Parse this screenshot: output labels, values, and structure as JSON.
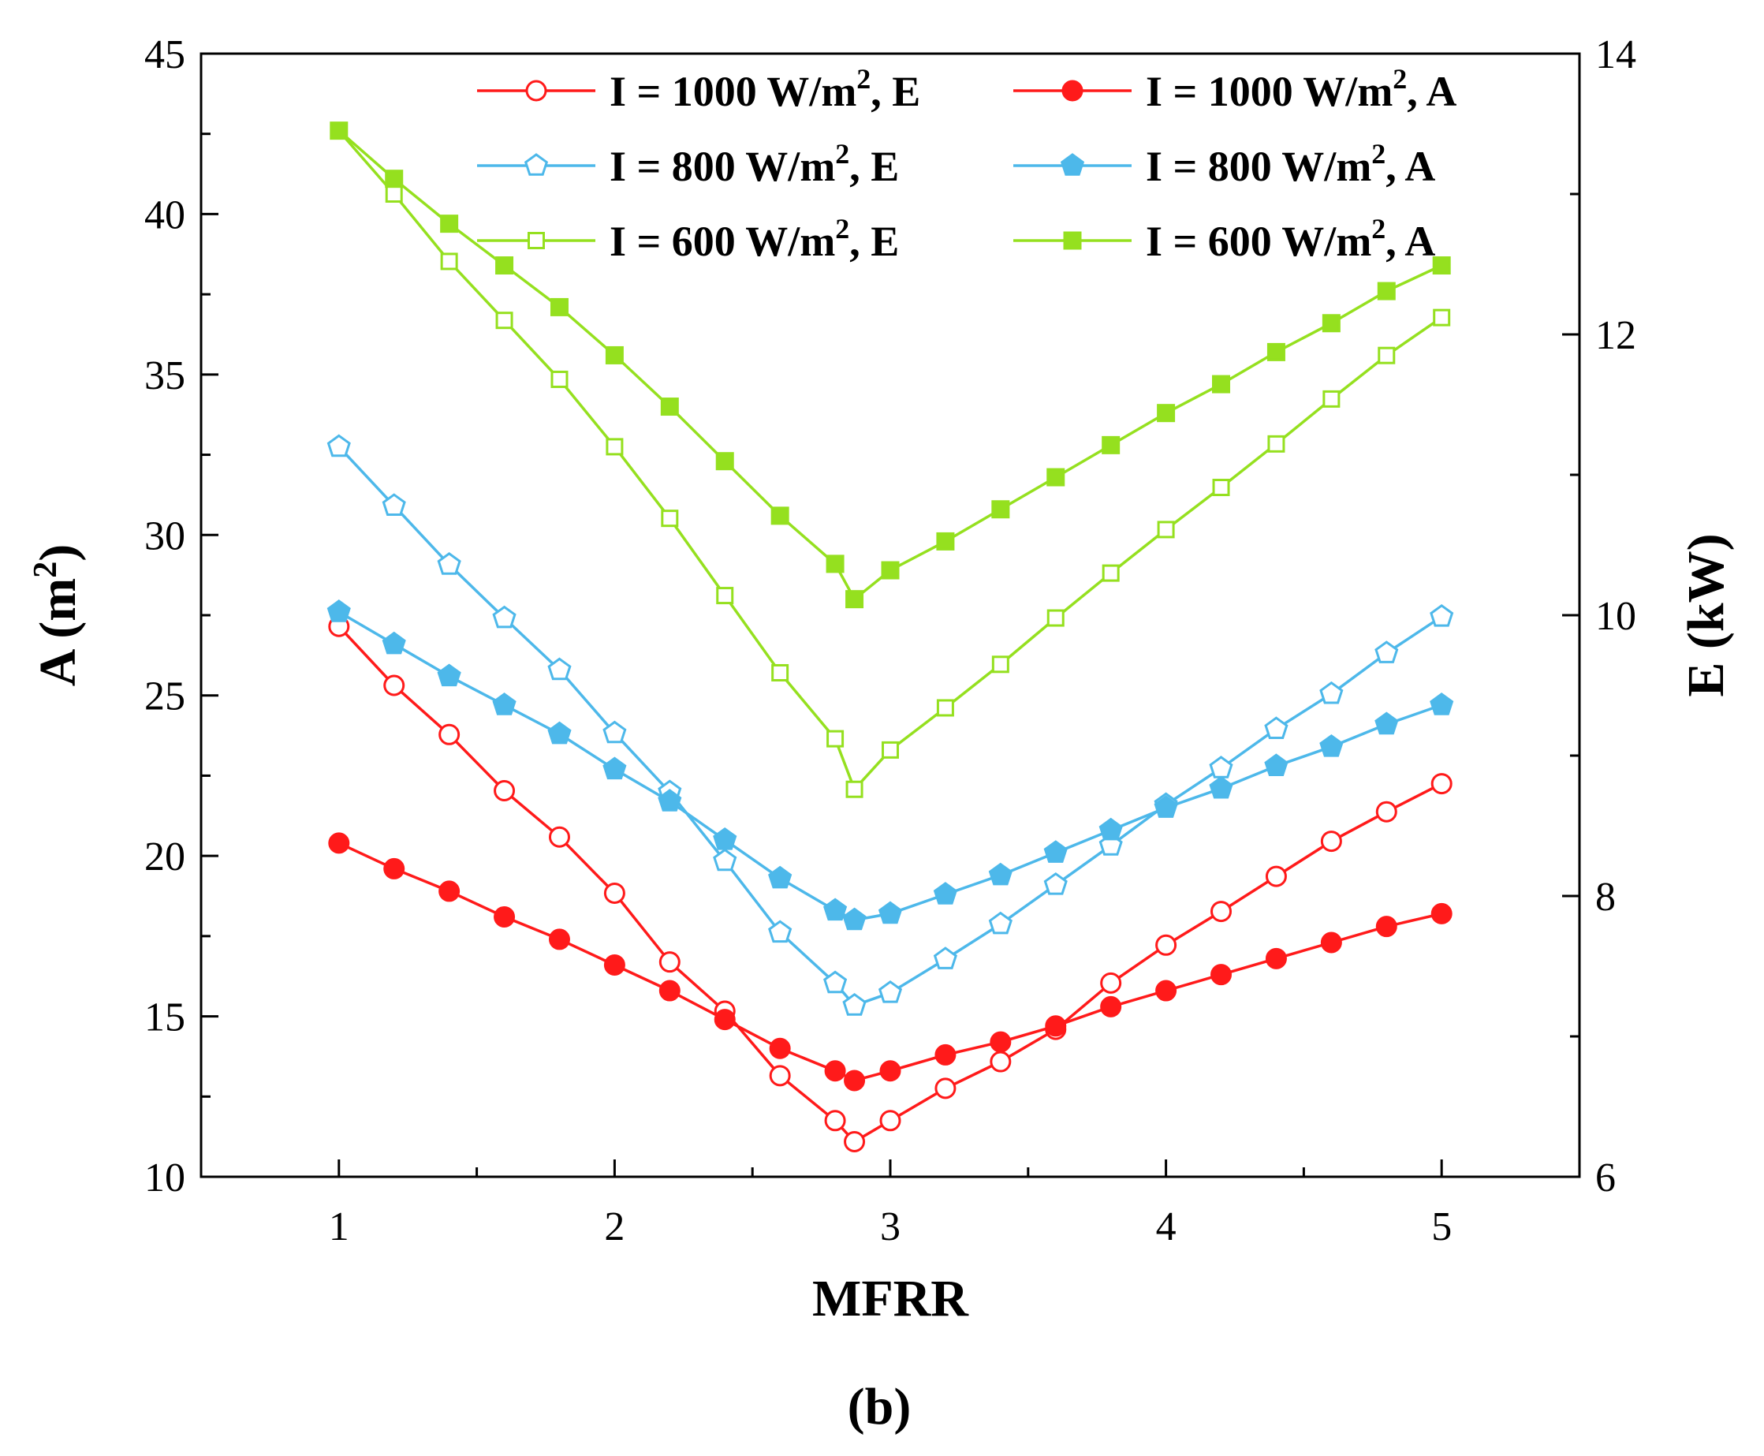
{
  "chart_data": {
    "type": "line",
    "panel_label": "(b)",
    "xlabel": "MFRR",
    "ylabel_left": "A (m²)",
    "ylabel_right": "E (kW)",
    "xlim": [
      0.5,
      5.5
    ],
    "ylim_left": [
      10,
      45
    ],
    "ylim_right": [
      6,
      14
    ],
    "x_ticks": [
      1,
      2,
      3,
      4,
      5
    ],
    "y_left_ticks": [
      10,
      15,
      20,
      25,
      30,
      35,
      40,
      45
    ],
    "y_right_ticks": [
      6,
      8,
      10,
      12,
      14
    ],
    "x": [
      1,
      1.2,
      1.4,
      1.6,
      1.8,
      2,
      2.2,
      2.4,
      2.6,
      2.8,
      2.87,
      3,
      3.2,
      3.4,
      3.6,
      3.8,
      4,
      4.2,
      4.4,
      4.6,
      4.8,
      5
    ],
    "legend_position": "top-right",
    "series": [
      {
        "name": "I = 1000 W/m², E",
        "legend_prefix": "I = 1000 W/m",
        "legend_sup": "2",
        "legend_suffix": ", E",
        "axis": "right",
        "color": "#ff1a1a",
        "marker": "circle",
        "filled": false,
        "values": [
          9.92,
          9.5,
          9.15,
          8.75,
          8.42,
          8.02,
          7.53,
          7.18,
          6.72,
          6.4,
          6.25,
          6.4,
          6.63,
          6.82,
          7.05,
          7.38,
          7.65,
          7.89,
          8.14,
          8.39,
          8.6,
          8.8
        ]
      },
      {
        "name": "I = 1000 W/m², A",
        "legend_prefix": "I = 1000 W/m",
        "legend_sup": "2",
        "legend_suffix": ", A",
        "axis": "left",
        "color": "#ff1a1a",
        "marker": "circle",
        "filled": true,
        "values": [
          20.4,
          19.6,
          18.9,
          18.1,
          17.4,
          16.6,
          15.8,
          14.9,
          14.0,
          13.3,
          13.0,
          13.3,
          13.8,
          14.2,
          14.7,
          15.3,
          15.8,
          16.3,
          16.8,
          17.3,
          17.8,
          18.2
        ]
      },
      {
        "name": "I = 800 W/m², E",
        "legend_prefix": "I = 800 W/m",
        "legend_sup": "2",
        "legend_suffix": ", E",
        "axis": "right",
        "color": "#4db8ea",
        "marker": "pentagon",
        "filled": false,
        "values": [
          11.2,
          10.78,
          10.36,
          9.98,
          9.61,
          9.16,
          8.74,
          8.25,
          7.74,
          7.38,
          7.22,
          7.31,
          7.55,
          7.8,
          8.08,
          8.36,
          8.65,
          8.91,
          9.19,
          9.44,
          9.73,
          9.99
        ]
      },
      {
        "name": "I = 800 W/m², A",
        "legend_prefix": "I = 800 W/m",
        "legend_sup": "2",
        "legend_suffix": ", A",
        "axis": "left",
        "color": "#4db8ea",
        "marker": "pentagon",
        "filled": true,
        "values": [
          27.6,
          26.6,
          25.6,
          24.7,
          23.8,
          22.7,
          21.7,
          20.5,
          19.3,
          18.3,
          18.0,
          18.2,
          18.8,
          19.4,
          20.1,
          20.8,
          21.5,
          22.1,
          22.8,
          23.4,
          24.1,
          24.7
        ]
      },
      {
        "name": "I = 600 W/m², E",
        "legend_prefix": "I = 600 W/m",
        "legend_sup": "2",
        "legend_suffix": ", E",
        "axis": "right",
        "color": "#95e01f",
        "marker": "square",
        "filled": false,
        "values": [
          13.45,
          13.0,
          12.52,
          12.1,
          11.68,
          11.2,
          10.69,
          10.14,
          9.59,
          9.12,
          8.76,
          9.04,
          9.34,
          9.65,
          9.98,
          10.3,
          10.61,
          10.91,
          11.22,
          11.54,
          11.85,
          12.12
        ]
      },
      {
        "name": "I = 600 W/m², A",
        "legend_prefix": "I = 600 W/m",
        "legend_sup": "2",
        "legend_suffix": ", A",
        "axis": "left",
        "color": "#95e01f",
        "marker": "square",
        "filled": true,
        "values": [
          42.6,
          41.1,
          39.7,
          38.4,
          37.1,
          35.6,
          34.0,
          32.3,
          30.6,
          29.1,
          28.0,
          28.9,
          29.8,
          30.8,
          31.8,
          32.8,
          33.8,
          34.7,
          35.7,
          36.6,
          37.6,
          38.4
        ]
      }
    ]
  }
}
